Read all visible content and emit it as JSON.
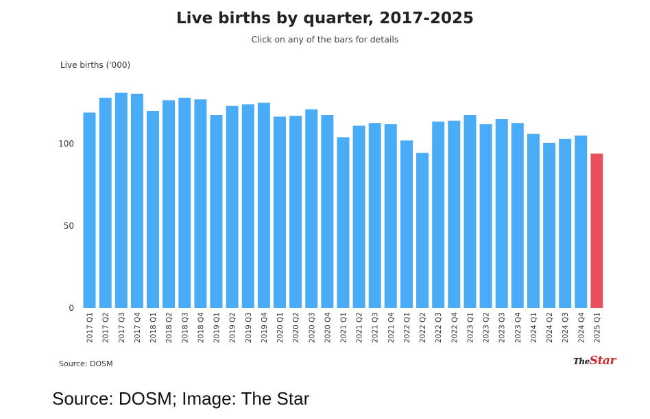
{
  "title": "Live births by quarter, 2017-2025",
  "subtitle": "Click on any of the bars for details",
  "source_note": "Source: DOSM",
  "logo_text": {
    "the": "The",
    "star": "Star"
  },
  "caption": "Source: DOSM; Image: The Star",
  "colors": {
    "bar": "#4aabf7",
    "highlight": "#e8505b",
    "text": "#333333"
  },
  "chart_data": {
    "type": "bar",
    "ylabel": "Live births ('000)",
    "xlabel": "",
    "ylim": [
      0,
      140
    ],
    "yticks": [
      0,
      50,
      100
    ],
    "grid": false,
    "categories": [
      "2017 Q1",
      "2017 Q2",
      "2017 Q3",
      "2017 Q4",
      "2018 Q1",
      "2018 Q2",
      "2018 Q3",
      "2018 Q4",
      "2019 Q1",
      "2019 Q2",
      "2019 Q3",
      "2019 Q4",
      "2020 Q1",
      "2020 Q2",
      "2020 Q3",
      "2020 Q4",
      "2021 Q1",
      "2021 Q2",
      "2021 Q3",
      "2021 Q4",
      "2022 Q1",
      "2022 Q2",
      "2022 Q3",
      "2022 Q4",
      "2023 Q1",
      "2023 Q2",
      "2023 Q3",
      "2023 Q4",
      "2024 Q1",
      "2024 Q2",
      "2024 Q3",
      "2024 Q4",
      "2025 Q1"
    ],
    "values": [
      119,
      128,
      131,
      130.5,
      120,
      126.5,
      128,
      127,
      117.5,
      123,
      124,
      125,
      116.5,
      117,
      121,
      117.5,
      104,
      111,
      112.5,
      112,
      102,
      94.5,
      113.5,
      114,
      117.5,
      112,
      115,
      112.5,
      106,
      100.5,
      103,
      105,
      94
    ],
    "highlight_index": 32
  }
}
